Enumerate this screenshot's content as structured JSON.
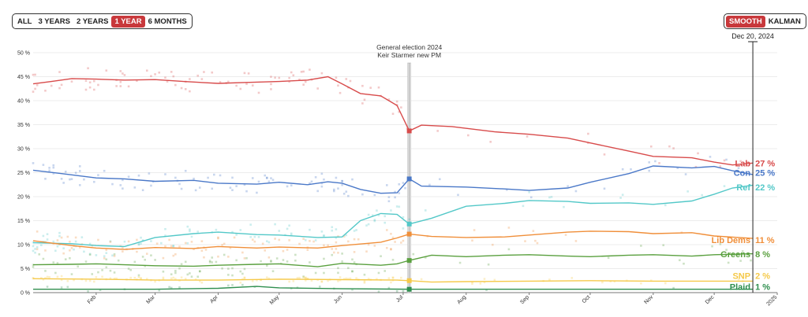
{
  "controls": {
    "ranges": [
      {
        "label": "ALL",
        "active": false
      },
      {
        "label": "3 YEARS",
        "active": false
      },
      {
        "label": "2 YEARS",
        "active": false
      },
      {
        "label": "1 YEAR",
        "active": true
      },
      {
        "label": "6 MONTHS",
        "active": false
      }
    ],
    "modes": [
      {
        "label": "SMOOTH",
        "active": true
      },
      {
        "label": "KALMAN",
        "active": false
      }
    ]
  },
  "cursor": {
    "date": "Dec 20, 2024"
  },
  "annotation": {
    "line1": "General election 2024",
    "line2": "Keir Starmer new PM"
  },
  "chart_data": {
    "type": "line",
    "title": "",
    "xlabel": "",
    "ylabel": "",
    "ylim": [
      0,
      50
    ],
    "yticks": [
      {
        "v": 0,
        "label": "0 %"
      },
      {
        "v": 5,
        "label": "5 %"
      },
      {
        "v": 10,
        "label": "10 %"
      },
      {
        "v": 15,
        "label": "15 %"
      },
      {
        "v": 20,
        "label": "20 %"
      },
      {
        "v": 25,
        "label": "25 %"
      },
      {
        "v": 30,
        "label": "30 %"
      },
      {
        "v": 35,
        "label": "35 %"
      },
      {
        "v": 40,
        "label": "40 %"
      },
      {
        "v": 45,
        "label": "45 %"
      },
      {
        "v": 50,
        "label": "50 %"
      }
    ],
    "xlim": [
      "2024-01-01",
      "2025-01-01"
    ],
    "xticks": [
      {
        "date": "2024-02-01",
        "label": "Feb"
      },
      {
        "date": "2024-03-01",
        "label": "Mar"
      },
      {
        "date": "2024-04-01",
        "label": "Apr"
      },
      {
        "date": "2024-05-01",
        "label": "May"
      },
      {
        "date": "2024-06-01",
        "label": "Jun"
      },
      {
        "date": "2024-07-01",
        "label": "Jul"
      },
      {
        "date": "2024-08-01",
        "label": "Aug"
      },
      {
        "date": "2024-09-01",
        "label": "Sep"
      },
      {
        "date": "2024-10-01",
        "label": "Oct"
      },
      {
        "date": "2024-11-01",
        "label": "Nov"
      },
      {
        "date": "2024-12-01",
        "label": "Dec"
      },
      {
        "date": "2025-01-01",
        "label": "2025"
      }
    ],
    "event_date": "2024-07-04",
    "result_markers": [
      {
        "party": "Lab",
        "value": 33.7,
        "color": "#d84b4b"
      },
      {
        "party": "Con",
        "value": 23.7,
        "color": "#4a78c8"
      },
      {
        "party": "Ref",
        "value": 14.3,
        "color": "#53c8c8"
      },
      {
        "party": "Lib Dems",
        "value": 12.2,
        "color": "#f08f3a"
      },
      {
        "party": "Greens",
        "value": 6.7,
        "color": "#5aa03f"
      },
      {
        "party": "SNP",
        "value": 2.5,
        "color": "#f5c94a"
      },
      {
        "party": "Plaid",
        "value": 0.7,
        "color": "#2f8f4f"
      }
    ],
    "series": [
      {
        "name": "Lab",
        "value_label": "27 %",
        "color": "#d84b4b",
        "points": [
          [
            "2024-01-01",
            43.5
          ],
          [
            "2024-01-10",
            44.0
          ],
          [
            "2024-01-20",
            44.6
          ],
          [
            "2024-02-01",
            44.5
          ],
          [
            "2024-02-15",
            44.3
          ],
          [
            "2024-03-01",
            44.4
          ],
          [
            "2024-03-15",
            44.0
          ],
          [
            "2024-04-01",
            43.6
          ],
          [
            "2024-04-15",
            43.8
          ],
          [
            "2024-05-01",
            44.0
          ],
          [
            "2024-05-15",
            44.3
          ],
          [
            "2024-05-25",
            45.0
          ],
          [
            "2024-06-01",
            43.5
          ],
          [
            "2024-06-10",
            41.5
          ],
          [
            "2024-06-20",
            41.0
          ],
          [
            "2024-06-28",
            39.0
          ],
          [
            "2024-07-04",
            33.7
          ],
          [
            "2024-07-10",
            34.9
          ],
          [
            "2024-07-25",
            34.6
          ],
          [
            "2024-08-15",
            33.5
          ],
          [
            "2024-09-01",
            33.0
          ],
          [
            "2024-09-20",
            32.2
          ],
          [
            "2024-10-01",
            31.2
          ],
          [
            "2024-10-20",
            29.5
          ],
          [
            "2024-11-01",
            28.4
          ],
          [
            "2024-11-20",
            28.1
          ],
          [
            "2024-12-01",
            27.2
          ],
          [
            "2024-12-10",
            26.6
          ],
          [
            "2024-12-20",
            27.0
          ]
        ]
      },
      {
        "name": "Con",
        "value_label": "25 %",
        "color": "#4a78c8",
        "points": [
          [
            "2024-01-01",
            25.5
          ],
          [
            "2024-01-15",
            24.8
          ],
          [
            "2024-02-01",
            23.9
          ],
          [
            "2024-02-15",
            23.7
          ],
          [
            "2024-03-01",
            23.2
          ],
          [
            "2024-03-20",
            23.4
          ],
          [
            "2024-04-01",
            22.8
          ],
          [
            "2024-04-20",
            22.6
          ],
          [
            "2024-05-01",
            23.0
          ],
          [
            "2024-05-15",
            22.5
          ],
          [
            "2024-05-25",
            23.1
          ],
          [
            "2024-06-01",
            22.8
          ],
          [
            "2024-06-10",
            21.5
          ],
          [
            "2024-06-20",
            20.7
          ],
          [
            "2024-06-28",
            20.8
          ],
          [
            "2024-07-04",
            23.7
          ],
          [
            "2024-07-10",
            22.2
          ],
          [
            "2024-08-01",
            22.0
          ],
          [
            "2024-08-20",
            21.6
          ],
          [
            "2024-09-01",
            21.3
          ],
          [
            "2024-09-20",
            21.8
          ],
          [
            "2024-10-01",
            23.0
          ],
          [
            "2024-10-20",
            24.8
          ],
          [
            "2024-11-01",
            26.4
          ],
          [
            "2024-11-20",
            26.0
          ],
          [
            "2024-12-01",
            26.3
          ],
          [
            "2024-12-10",
            25.4
          ],
          [
            "2024-12-20",
            24.6
          ]
        ]
      },
      {
        "name": "Ref",
        "value_label": "22 %",
        "color": "#53c8c8",
        "points": [
          [
            "2024-01-01",
            10.4
          ],
          [
            "2024-01-20",
            10.2
          ],
          [
            "2024-02-01",
            9.8
          ],
          [
            "2024-02-15",
            9.6
          ],
          [
            "2024-03-01",
            11.5
          ],
          [
            "2024-03-20",
            12.3
          ],
          [
            "2024-04-01",
            12.6
          ],
          [
            "2024-04-20",
            12.1
          ],
          [
            "2024-05-01",
            12.0
          ],
          [
            "2024-05-20",
            11.5
          ],
          [
            "2024-06-01",
            11.6
          ],
          [
            "2024-06-10",
            15.0
          ],
          [
            "2024-06-20",
            16.5
          ],
          [
            "2024-06-28",
            16.3
          ],
          [
            "2024-07-04",
            14.3
          ],
          [
            "2024-07-15",
            15.5
          ],
          [
            "2024-08-01",
            18.0
          ],
          [
            "2024-08-20",
            18.6
          ],
          [
            "2024-09-01",
            19.2
          ],
          [
            "2024-09-20",
            19.0
          ],
          [
            "2024-10-01",
            18.6
          ],
          [
            "2024-10-20",
            18.7
          ],
          [
            "2024-11-01",
            18.4
          ],
          [
            "2024-11-20",
            19.1
          ],
          [
            "2024-12-01",
            20.5
          ],
          [
            "2024-12-10",
            21.8
          ],
          [
            "2024-12-20",
            22.4
          ]
        ]
      },
      {
        "name": "Lib Dems",
        "value_label": "11 %",
        "color": "#f08f3a",
        "points": [
          [
            "2024-01-01",
            10.8
          ],
          [
            "2024-01-20",
            9.8
          ],
          [
            "2024-02-01",
            9.3
          ],
          [
            "2024-02-15",
            9.0
          ],
          [
            "2024-03-01",
            9.4
          ],
          [
            "2024-03-20",
            9.2
          ],
          [
            "2024-04-01",
            9.6
          ],
          [
            "2024-04-20",
            9.3
          ],
          [
            "2024-05-01",
            9.5
          ],
          [
            "2024-05-20",
            9.3
          ],
          [
            "2024-06-01",
            9.8
          ],
          [
            "2024-06-20",
            10.5
          ],
          [
            "2024-06-28",
            11.4
          ],
          [
            "2024-07-04",
            12.2
          ],
          [
            "2024-07-15",
            11.7
          ],
          [
            "2024-08-01",
            11.5
          ],
          [
            "2024-08-20",
            11.6
          ],
          [
            "2024-09-01",
            12.0
          ],
          [
            "2024-09-20",
            12.6
          ],
          [
            "2024-10-01",
            12.8
          ],
          [
            "2024-10-20",
            12.7
          ],
          [
            "2024-11-01",
            12.3
          ],
          [
            "2024-11-20",
            12.5
          ],
          [
            "2024-12-01",
            11.8
          ],
          [
            "2024-12-20",
            11.3
          ]
        ]
      },
      {
        "name": "Greens",
        "value_label": "8 %",
        "color": "#5aa03f",
        "points": [
          [
            "2024-01-01",
            5.8
          ],
          [
            "2024-01-20",
            5.9
          ],
          [
            "2024-02-01",
            6.0
          ],
          [
            "2024-02-15",
            5.8
          ],
          [
            "2024-03-01",
            5.6
          ],
          [
            "2024-03-20",
            5.5
          ],
          [
            "2024-04-01",
            5.7
          ],
          [
            "2024-04-20",
            5.9
          ],
          [
            "2024-05-01",
            6.0
          ],
          [
            "2024-05-20",
            5.4
          ],
          [
            "2024-06-01",
            6.1
          ],
          [
            "2024-06-20",
            5.7
          ],
          [
            "2024-06-28",
            6.0
          ],
          [
            "2024-07-04",
            6.7
          ],
          [
            "2024-07-15",
            7.8
          ],
          [
            "2024-08-01",
            7.5
          ],
          [
            "2024-08-20",
            7.8
          ],
          [
            "2024-09-01",
            7.9
          ],
          [
            "2024-09-20",
            7.6
          ],
          [
            "2024-10-01",
            7.5
          ],
          [
            "2024-10-20",
            7.8
          ],
          [
            "2024-11-01",
            7.9
          ],
          [
            "2024-11-20",
            7.6
          ],
          [
            "2024-12-01",
            7.9
          ],
          [
            "2024-12-20",
            8.1
          ]
        ]
      },
      {
        "name": "SNP",
        "value_label": "2 %",
        "color": "#f5c94a",
        "points": [
          [
            "2024-01-01",
            2.9
          ],
          [
            "2024-02-01",
            2.8
          ],
          [
            "2024-03-01",
            2.6
          ],
          [
            "2024-04-01",
            2.6
          ],
          [
            "2024-05-01",
            2.8
          ],
          [
            "2024-06-01",
            2.7
          ],
          [
            "2024-06-28",
            2.6
          ],
          [
            "2024-07-04",
            2.5
          ],
          [
            "2024-07-15",
            2.2
          ],
          [
            "2024-08-01",
            2.3
          ],
          [
            "2024-09-01",
            2.4
          ],
          [
            "2024-10-01",
            2.5
          ],
          [
            "2024-11-01",
            2.4
          ],
          [
            "2024-12-01",
            2.4
          ],
          [
            "2024-12-20",
            2.4
          ]
        ]
      },
      {
        "name": "Plaid",
        "value_label": "1 %",
        "color": "#2f8f4f",
        "points": [
          [
            "2024-01-01",
            0.7
          ],
          [
            "2024-03-01",
            0.7
          ],
          [
            "2024-04-01",
            0.9
          ],
          [
            "2024-04-20",
            1.3
          ],
          [
            "2024-05-01",
            1.0
          ],
          [
            "2024-06-01",
            0.8
          ],
          [
            "2024-07-04",
            0.7
          ],
          [
            "2024-08-01",
            0.7
          ],
          [
            "2024-10-01",
            0.7
          ],
          [
            "2024-12-20",
            0.7
          ]
        ]
      }
    ]
  }
}
